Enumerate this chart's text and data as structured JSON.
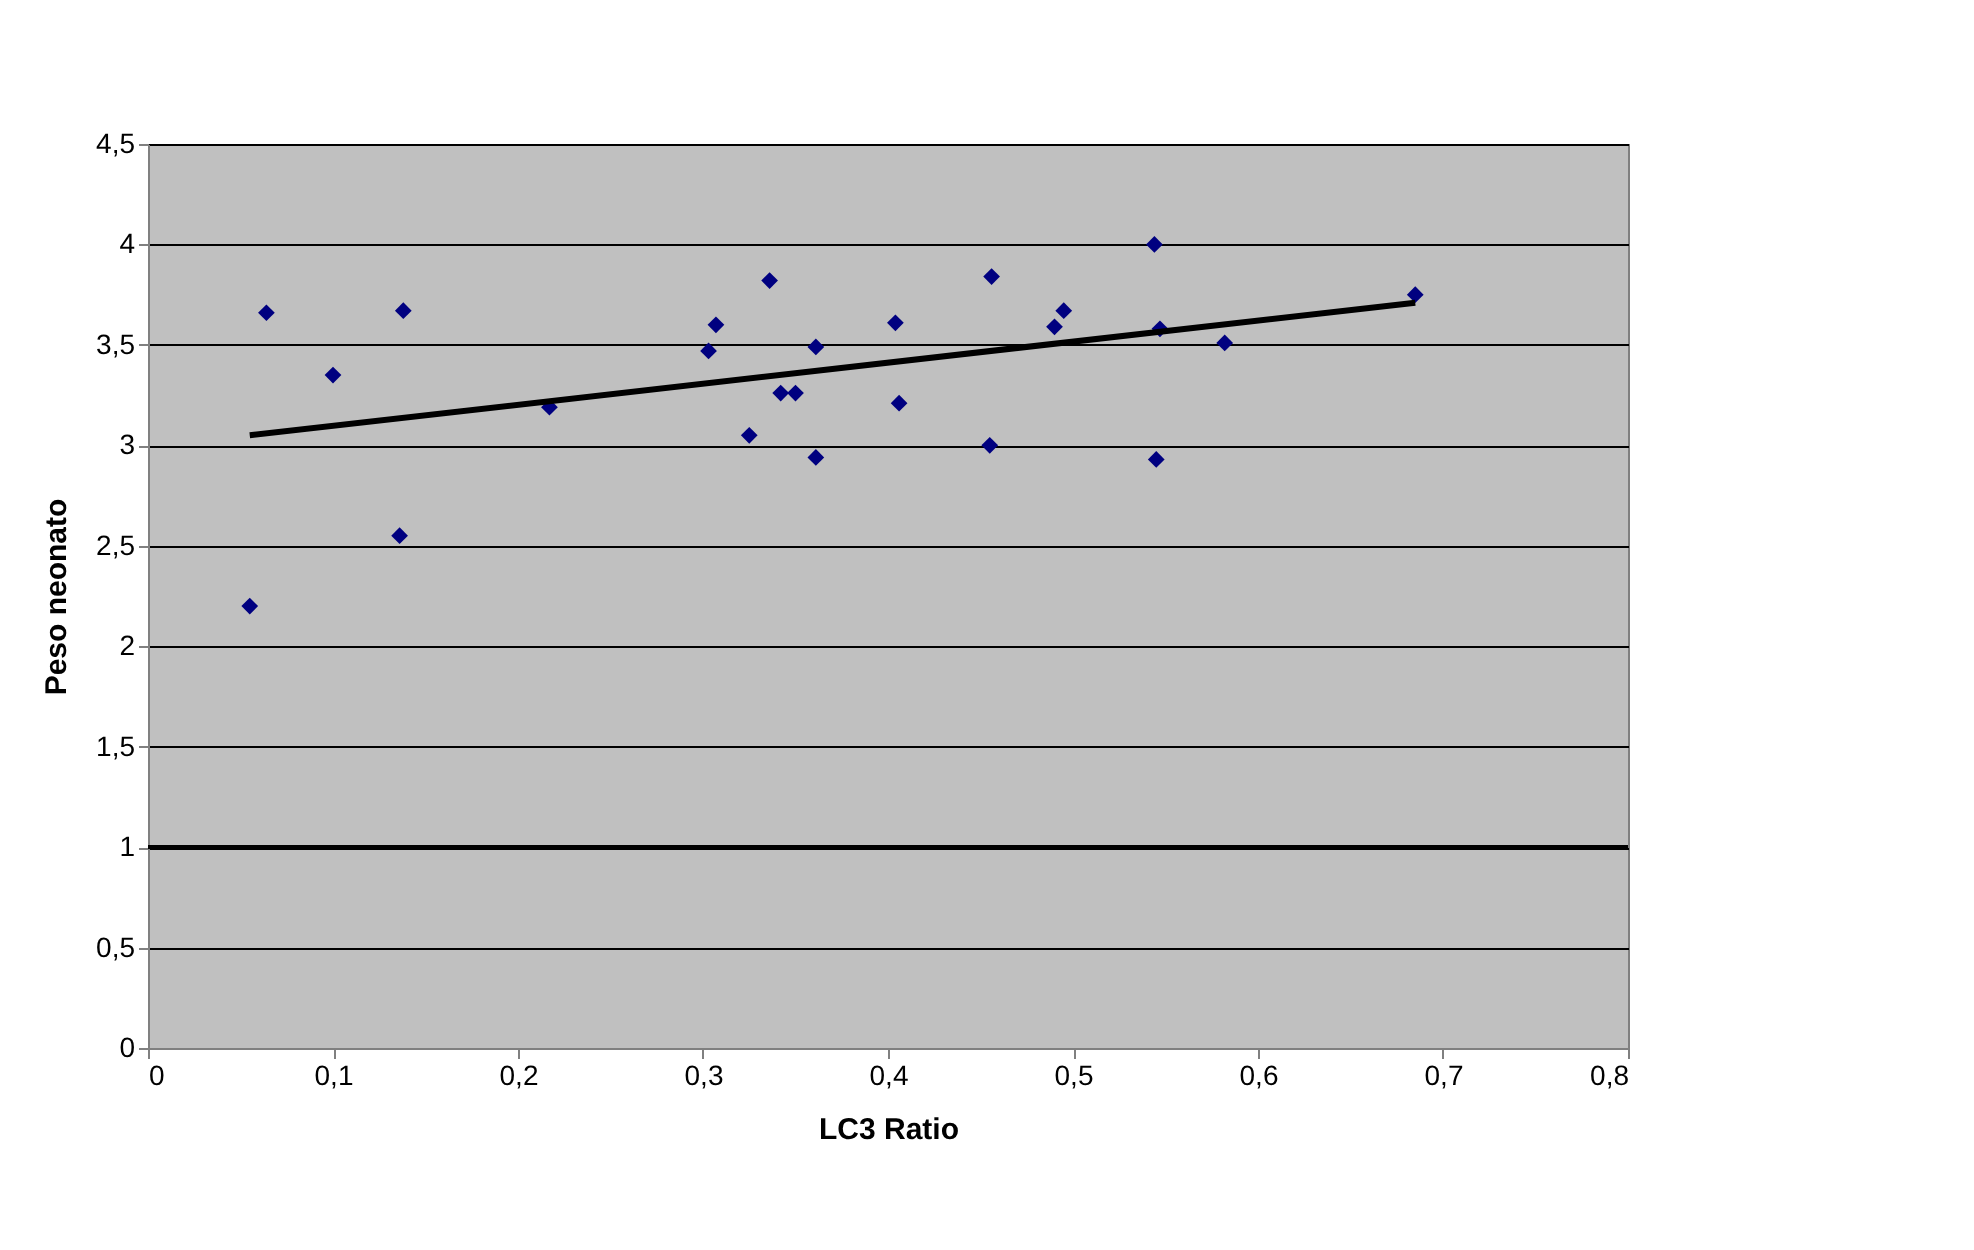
{
  "chart_data": {
    "type": "scatter",
    "xlabel": "LC3 Ratio",
    "ylabel": "Peso neonato",
    "grid": "y",
    "xlim": [
      0,
      0.8
    ],
    "ylim": [
      0,
      4.5
    ],
    "xticks": [
      0,
      {
        "value": 0.1,
        "label": "0,1"
      },
      {
        "value": 0.2,
        "label": "0,2"
      },
      {
        "value": 0.3,
        "label": "0,3"
      },
      {
        "value": 0.4,
        "label": "0,4"
      },
      {
        "value": 0.5,
        "label": "0,5"
      },
      {
        "value": 0.6,
        "label": "0,6"
      },
      {
        "value": 0.7,
        "label": "0,7"
      },
      {
        "value": 0.8,
        "label": "0,8"
      }
    ],
    "yticks": [
      0,
      {
        "value": 0.5,
        "label": "0,5"
      },
      1,
      {
        "value": 1.5,
        "label": "1,5"
      },
      2,
      {
        "value": 2.5,
        "label": "2,5"
      },
      3,
      {
        "value": 3.5,
        "label": "3,5"
      },
      4,
      {
        "value": 4.5,
        "label": "4,5"
      }
    ],
    "series": [
      {
        "type": "scatter",
        "marker": "diamond",
        "color": "#000080",
        "x": [
          0.055,
          0.064,
          0.1,
          0.138,
          0.136,
          0.217,
          0.303,
          0.307,
          0.325,
          0.336,
          0.342,
          0.35,
          0.361,
          0.361,
          0.404,
          0.406,
          0.456,
          0.455,
          0.49,
          0.495,
          0.544,
          0.547,
          0.545,
          0.582,
          0.685
        ],
        "values": [
          2.2,
          3.66,
          3.35,
          3.67,
          2.55,
          3.19,
          3.47,
          3.6,
          3.05,
          3.82,
          3.26,
          3.26,
          3.49,
          2.94,
          3.61,
          3.21,
          3.84,
          3.0,
          3.59,
          3.67,
          4.0,
          3.58,
          2.93,
          3.51,
          3.75
        ]
      },
      {
        "type": "line",
        "marker": "none",
        "color": "#000000",
        "x": [
          0.055,
          0.685
        ],
        "values": [
          3.05,
          3.71
        ]
      }
    ],
    "ref_lines": [
      {
        "axis": "y",
        "value": 1,
        "color": "#000000"
      }
    ]
  }
}
